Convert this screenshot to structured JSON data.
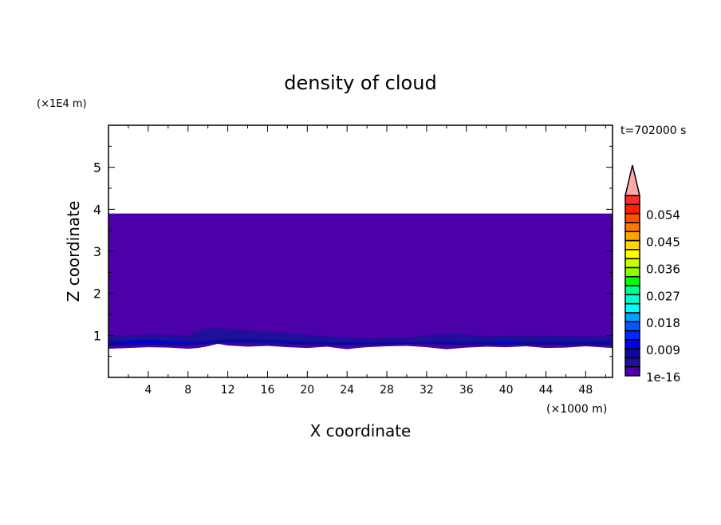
{
  "chart_data": {
    "type": "heatmap",
    "title": "density of cloud",
    "xlabel": "X coordinate",
    "ylabel": "Z coordinate",
    "x_unit": "(×1000 m)",
    "y_unit": "(×1E4 m)",
    "time_label": "t=702000 s",
    "xlim": [
      0,
      50.7
    ],
    "ylim": [
      0,
      6
    ],
    "x_ticks": [
      4,
      8,
      12,
      16,
      20,
      24,
      28,
      32,
      36,
      40,
      44,
      48
    ],
    "x_minor_step": 2,
    "y_ticks": [
      1,
      2,
      3,
      4,
      5
    ],
    "y_minor_step": 0.5,
    "colorbar": {
      "levels_step": 0.003,
      "labels": [
        "1e-16",
        "0.009",
        "0.018",
        "0.027",
        "0.036",
        "0.045",
        "0.054"
      ],
      "label_levels": [
        0,
        0.009,
        0.018,
        0.027,
        0.036,
        0.045,
        0.054
      ],
      "colors": [
        "#4b00a8",
        "#200f9a",
        "#0a0a9a",
        "#0000e6",
        "#0028ff",
        "#0058ff",
        "#00a0ff",
        "#00ffff",
        "#00ffd2",
        "#00ff90",
        "#00ff00",
        "#90ff00",
        "#ccff00",
        "#ffff00",
        "#ffd700",
        "#ffa500",
        "#ff7800",
        "#ff5000",
        "#ff2000",
        "#ff2a2a"
      ],
      "overflow_color": "#ffaaaa"
    },
    "cloud_top": 3.9,
    "cloud_base": {
      "x": [
        0,
        2,
        4,
        6,
        8,
        9,
        10,
        11,
        12,
        14,
        16,
        18,
        20,
        22,
        24,
        25,
        26,
        28,
        30,
        32,
        34,
        36,
        38,
        40,
        42,
        44,
        46,
        48,
        50.7
      ],
      "z": [
        0.68,
        0.7,
        0.72,
        0.71,
        0.68,
        0.7,
        0.74,
        0.8,
        0.76,
        0.73,
        0.75,
        0.72,
        0.7,
        0.73,
        0.67,
        0.7,
        0.72,
        0.74,
        0.75,
        0.72,
        0.67,
        0.71,
        0.73,
        0.72,
        0.74,
        0.7,
        0.71,
        0.74,
        0.7
      ]
    },
    "bands": [
      {
        "level": 1,
        "x": [
          0,
          4,
          8,
          10,
          14,
          18,
          22,
          26,
          30,
          34,
          38,
          42,
          46,
          50.7
        ],
        "lower": [
          0.74,
          0.77,
          0.74,
          0.82,
          0.8,
          0.77,
          0.76,
          0.76,
          0.8,
          0.76,
          0.77,
          0.77,
          0.76,
          0.76
        ],
        "upper": [
          0.98,
          1.02,
          1.0,
          1.18,
          1.12,
          1.05,
          0.98,
          0.92,
          0.95,
          1.05,
          0.98,
          1.0,
          0.98,
          0.97
        ]
      },
      {
        "level": 2,
        "x": [
          0,
          4,
          8,
          12,
          16,
          20,
          24,
          28,
          32,
          36,
          40,
          44,
          48,
          50.7
        ],
        "lower": [
          0.75,
          0.78,
          0.76,
          0.83,
          0.82,
          0.78,
          0.77,
          0.78,
          0.81,
          0.77,
          0.78,
          0.78,
          0.77,
          0.77
        ],
        "upper": [
          0.86,
          0.9,
          0.84,
          0.92,
          0.9,
          0.86,
          0.84,
          0.83,
          0.85,
          0.84,
          0.85,
          0.86,
          0.85,
          0.86
        ]
      },
      {
        "level": 3,
        "x": [
          1,
          3,
          5,
          7,
          10
        ],
        "lower": [
          0.8,
          0.81,
          0.8,
          0.8,
          0.8
        ],
        "upper": [
          0.83,
          0.86,
          0.86,
          0.84,
          0.82
        ]
      },
      {
        "level": 3,
        "x": [
          39,
          40,
          41
        ],
        "lower": [
          0.79,
          0.79,
          0.79
        ],
        "upper": [
          0.83,
          0.84,
          0.83
        ]
      }
    ]
  }
}
